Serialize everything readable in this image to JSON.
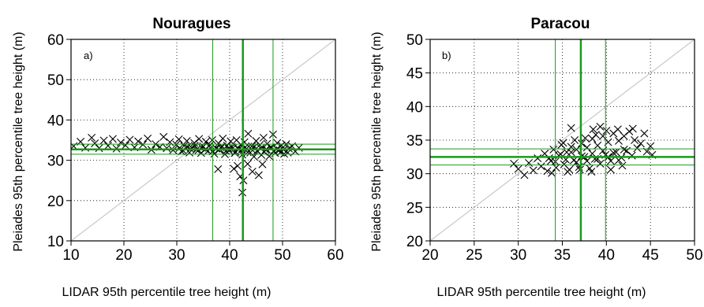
{
  "chart_data": [
    {
      "type": "scatter",
      "title": "Nouragues",
      "panel_label": "a)",
      "xlabel": "LIDAR 95th percentile tree height (m)",
      "ylabel": "Pleiades 95th percentile tree height (m)",
      "xlim": [
        10,
        60
      ],
      "ylim": [
        10,
        60
      ],
      "xticks": [
        "10",
        "20",
        "30",
        "40",
        "50",
        "60"
      ],
      "yticks": [
        "10",
        "20",
        "30",
        "40",
        "50",
        "60"
      ],
      "grid": true,
      "one_to_one_line": true,
      "marker": "x",
      "point_color": "#000000",
      "reference_line_color": "#1a9a1a",
      "vlines": [
        {
          "x": 36.8,
          "w": 1
        },
        {
          "x": 42.5,
          "w": 2.5
        },
        {
          "x": 48.2,
          "w": 1
        }
      ],
      "hlines": [
        {
          "y": 31.5,
          "w": 1
        },
        {
          "y": 32.7,
          "w": 2.5
        },
        {
          "y": 34.0,
          "w": 1
        }
      ],
      "points": [
        [
          10.5,
          33.5
        ],
        [
          11.8,
          34.6
        ],
        [
          12.7,
          33.1
        ],
        [
          13.9,
          35.6
        ],
        [
          14.5,
          34.2
        ],
        [
          15.3,
          33.0
        ],
        [
          16.2,
          34.9
        ],
        [
          17.0,
          33.6
        ],
        [
          17.9,
          35.3
        ],
        [
          18.6,
          32.9
        ],
        [
          19.4,
          34.4
        ],
        [
          20.3,
          33.7
        ],
        [
          21.1,
          35.1
        ],
        [
          22.0,
          33.2
        ],
        [
          22.7,
          34.7
        ],
        [
          23.6,
          33.9
        ],
        [
          24.5,
          35.4
        ],
        [
          25.2,
          32.6
        ],
        [
          26.0,
          34.0
        ],
        [
          26.8,
          33.3
        ],
        [
          27.5,
          35.8
        ],
        [
          28.1,
          33.0
        ],
        [
          28.7,
          34.5
        ],
        [
          29.3,
          32.5
        ],
        [
          29.9,
          33.9
        ],
        [
          30.4,
          35.2
        ],
        [
          30.9,
          32.2
        ],
        [
          31.4,
          33.6
        ],
        [
          31.9,
          34.8
        ],
        [
          32.4,
          31.9
        ],
        [
          32.8,
          33.1
        ],
        [
          33.3,
          34.3
        ],
        [
          33.7,
          32.6
        ],
        [
          34.2,
          35.3
        ],
        [
          34.6,
          31.8
        ],
        [
          35.0,
          33.4
        ],
        [
          35.5,
          34.6
        ],
        [
          35.9,
          32.3
        ],
        [
          36.3,
          33.8
        ],
        [
          36.7,
          35.0
        ],
        [
          37.1,
          31.6
        ],
        [
          37.5,
          32.9
        ],
        [
          37.9,
          34.2
        ],
        [
          38.3,
          33.2
        ],
        [
          38.7,
          35.4
        ],
        [
          39.1,
          31.5
        ],
        [
          39.5,
          33.6
        ],
        [
          39.9,
          32.4
        ],
        [
          40.2,
          34.7
        ],
        [
          40.6,
          33.0
        ],
        [
          41.0,
          31.8
        ],
        [
          41.3,
          35.0
        ],
        [
          41.7,
          32.7
        ],
        [
          42.1,
          33.9
        ],
        [
          42.4,
          31.4
        ],
        [
          42.8,
          34.5
        ],
        [
          43.2,
          32.9
        ],
        [
          43.5,
          36.6
        ],
        [
          43.9,
          31.9
        ],
        [
          44.2,
          33.5
        ],
        [
          44.6,
          30.9
        ],
        [
          45.0,
          34.8
        ],
        [
          45.3,
          32.2
        ],
        [
          45.7,
          33.8
        ],
        [
          46.0,
          31.3
        ],
        [
          46.4,
          35.6
        ],
        [
          46.8,
          32.6
        ],
        [
          47.1,
          34.1
        ],
        [
          47.5,
          31.0
        ],
        [
          47.9,
          33.2
        ],
        [
          48.2,
          36.4
        ],
        [
          48.6,
          31.8
        ],
        [
          49.0,
          34.3
        ],
        [
          49.4,
          32.5
        ],
        [
          49.8,
          33.7
        ],
        [
          50.3,
          31.6
        ],
        [
          50.7,
          34.0
        ],
        [
          51.2,
          32.9
        ],
        [
          51.8,
          33.5
        ],
        [
          52.4,
          32.2
        ],
        [
          53.1,
          33.1
        ],
        [
          30.5,
          33.0
        ],
        [
          31.2,
          32.4
        ],
        [
          32.0,
          33.3
        ],
        [
          32.6,
          32.8
        ],
        [
          33.4,
          33.6
        ],
        [
          34.1,
          32.5
        ],
        [
          34.8,
          33.1
        ],
        [
          35.4,
          32.7
        ],
        [
          36.1,
          33.5
        ],
        [
          36.8,
          32.2
        ],
        [
          37.4,
          33.0
        ],
        [
          38.0,
          32.6
        ],
        [
          38.6,
          33.4
        ],
        [
          39.3,
          32.3
        ],
        [
          39.8,
          32.9
        ],
        [
          40.4,
          33.3
        ],
        [
          41.1,
          32.1
        ],
        [
          41.6,
          33.0
        ],
        [
          42.3,
          32.6
        ],
        [
          42.9,
          33.2
        ],
        [
          43.4,
          32.0
        ],
        [
          44.1,
          32.8
        ],
        [
          44.7,
          33.4
        ],
        [
          45.2,
          32.4
        ],
        [
          45.9,
          33.0
        ],
        [
          46.5,
          32.1
        ],
        [
          47.0,
          32.7
        ],
        [
          47.7,
          33.2
        ],
        [
          48.3,
          32.3
        ],
        [
          48.9,
          32.8
        ],
        [
          49.6,
          32.0
        ],
        [
          50.2,
          32.6
        ],
        [
          51.0,
          31.9
        ],
        [
          37.8,
          27.8
        ],
        [
          40.8,
          27.9
        ],
        [
          42.0,
          26.0
        ],
        [
          42.6,
          25.0
        ],
        [
          42.4,
          22.0
        ],
        [
          44.3,
          27.2
        ],
        [
          45.5,
          26.3
        ],
        [
          46.2,
          29.0
        ],
        [
          43.4,
          29.1
        ],
        [
          41.5,
          28.6
        ]
      ]
    },
    {
      "type": "scatter",
      "title": "Paracou",
      "panel_label": "b)",
      "xlabel": "LIDAR 95th percentile tree height (m)",
      "ylabel": "Pleiades 95th percentile tree height (m)",
      "xlim": [
        20,
        50
      ],
      "ylim": [
        20,
        50
      ],
      "xticks": [
        "20",
        "25",
        "30",
        "35",
        "40",
        "45",
        "50"
      ],
      "yticks": [
        "20",
        "25",
        "30",
        "35",
        "40",
        "45",
        "50"
      ],
      "grid": true,
      "one_to_one_line": true,
      "marker": "x",
      "point_color": "#000000",
      "reference_line_color": "#1a9a1a",
      "vlines": [
        {
          "x": 34.2,
          "w": 1
        },
        {
          "x": 37.1,
          "w": 2.5
        },
        {
          "x": 39.9,
          "w": 1
        }
      ],
      "hlines": [
        {
          "y": 31.3,
          "w": 1
        },
        {
          "y": 32.5,
          "w": 2.5
        },
        {
          "y": 33.7,
          "w": 1
        }
      ],
      "points": [
        [
          29.5,
          31.5
        ],
        [
          30.0,
          30.7
        ],
        [
          30.7,
          29.8
        ],
        [
          31.2,
          31.6
        ],
        [
          31.7,
          30.5
        ],
        [
          32.2,
          32.3
        ],
        [
          32.6,
          31.1
        ],
        [
          33.0,
          33.0
        ],
        [
          33.3,
          30.4
        ],
        [
          33.7,
          31.9
        ],
        [
          34.0,
          33.6
        ],
        [
          34.3,
          30.9
        ],
        [
          34.6,
          32.7
        ],
        [
          34.9,
          34.3
        ],
        [
          35.2,
          31.4
        ],
        [
          35.5,
          33.2
        ],
        [
          35.8,
          30.6
        ],
        [
          36.0,
          34.0
        ],
        [
          36.3,
          32.0
        ],
        [
          36.6,
          33.6
        ],
        [
          36.0,
          36.8
        ],
        [
          36.9,
          31.0
        ],
        [
          37.2,
          34.5
        ],
        [
          37.5,
          32.5
        ],
        [
          37.8,
          33.9
        ],
        [
          38.1,
          30.8
        ],
        [
          38.4,
          35.2
        ],
        [
          38.7,
          32.2
        ],
        [
          39.0,
          34.2
        ],
        [
          39.3,
          31.5
        ],
        [
          39.6,
          35.6
        ],
        [
          39.9,
          32.8
        ],
        [
          40.2,
          34.7
        ],
        [
          40.5,
          31.9
        ],
        [
          40.8,
          36.0
        ],
        [
          41.1,
          33.2
        ],
        [
          41.4,
          34.9
        ],
        [
          41.7,
          32.4
        ],
        [
          42.0,
          35.6
        ],
        [
          42.3,
          33.4
        ],
        [
          42.6,
          36.3
        ],
        [
          42.9,
          32.7
        ],
        [
          43.2,
          35.0
        ],
        [
          43.5,
          33.8
        ],
        [
          43.9,
          34.5
        ],
        [
          44.3,
          36.0
        ],
        [
          44.6,
          33.3
        ],
        [
          45.0,
          34.1
        ],
        [
          45.2,
          32.8
        ],
        [
          33.5,
          32.3
        ],
        [
          34.2,
          31.8
        ],
        [
          34.8,
          32.9
        ],
        [
          35.4,
          32.1
        ],
        [
          36.0,
          33.2
        ],
        [
          36.6,
          31.7
        ],
        [
          37.2,
          32.6
        ],
        [
          37.8,
          31.9
        ],
        [
          38.4,
          33.0
        ],
        [
          39.0,
          32.2
        ],
        [
          39.6,
          33.4
        ],
        [
          40.2,
          32.5
        ],
        [
          40.8,
          33.1
        ],
        [
          41.4,
          32.0
        ],
        [
          42.0,
          33.6
        ],
        [
          35.1,
          34.6
        ],
        [
          36.4,
          35.0
        ],
        [
          37.6,
          35.3
        ],
        [
          38.8,
          35.8
        ],
        [
          40.0,
          36.4
        ],
        [
          41.3,
          36.6
        ],
        [
          43.0,
          36.7
        ],
        [
          38.5,
          36.6
        ],
        [
          39.3,
          37.0
        ],
        [
          35.6,
          30.3
        ],
        [
          37.0,
          30.6
        ],
        [
          38.3,
          30.3
        ],
        [
          40.5,
          30.6
        ],
        [
          41.8,
          31.2
        ],
        [
          33.8,
          30.1
        ]
      ]
    }
  ]
}
